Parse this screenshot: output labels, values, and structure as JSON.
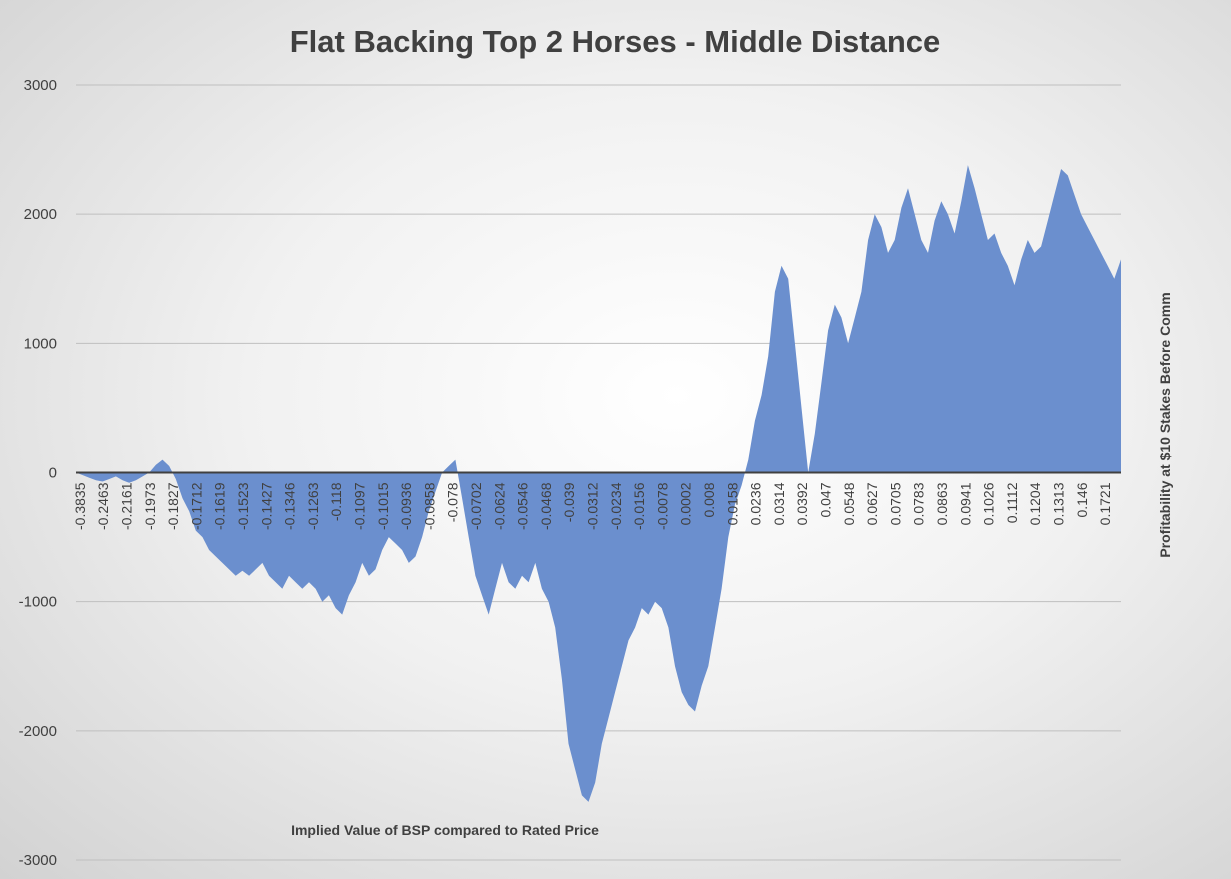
{
  "chart_data": {
    "type": "area",
    "title": "Flat Backing Top 2 Horses - Middle Distance",
    "xlabel": "Implied Value of BSP compared to Rated Price",
    "ylabel": "Profitability at $10 Stakes Before Comm",
    "ylim": [
      -3000,
      3000
    ],
    "yticks": [
      "3000",
      "2000",
      "1000",
      "0",
      "-1000",
      "-2000",
      "-3000"
    ],
    "grid": true,
    "color": "#6b8fce",
    "xtick_labels": [
      "-0.3835",
      "-0.2463",
      "-0.2161",
      "-0.1973",
      "-0.1827",
      "-0.1712",
      "-0.1619",
      "-0.1523",
      "-0.1427",
      "-0.1346",
      "-0.1263",
      "-0.118",
      "-0.1097",
      "-0.1015",
      "-0.0936",
      "-0.0858",
      "-0.078",
      "-0.0702",
      "-0.0624",
      "-0.0546",
      "-0.0468",
      "-0.039",
      "-0.0312",
      "-0.0234",
      "-0.0156",
      "-0.0078",
      "0.0002",
      "0.008",
      "0.0158",
      "0.0236",
      "0.0314",
      "0.0392",
      "0.047",
      "0.0548",
      "0.0627",
      "0.0705",
      "0.0783",
      "0.0863",
      "0.0941",
      "0.1026",
      "0.1112",
      "0.1204",
      "0.1313",
      "0.146",
      "0.1721"
    ],
    "series": [
      {
        "values": [
          0,
          -20,
          -40,
          -60,
          -70,
          -50,
          -30,
          -60,
          -80,
          -60,
          -30,
          0,
          60,
          100,
          50,
          -50,
          -200,
          -300,
          -450,
          -500,
          -600,
          -650,
          -700,
          -750,
          -800,
          -760,
          -800,
          -750,
          -700,
          -800,
          -850,
          -900,
          -800,
          -850,
          -900,
          -850,
          -900,
          -1000,
          -950,
          -1050,
          -1100,
          -950,
          -850,
          -700,
          -800,
          -750,
          -600,
          -500,
          -550,
          -600,
          -700,
          -650,
          -500,
          -300,
          -150,
          0,
          50,
          100,
          -200,
          -500,
          -800,
          -950,
          -1100,
          -900,
          -700,
          -850,
          -900,
          -800,
          -850,
          -700,
          -900,
          -1000,
          -1200,
          -1600,
          -2100,
          -2300,
          -2500,
          -2550,
          -2400,
          -2100,
          -1900,
          -1700,
          -1500,
          -1300,
          -1200,
          -1050,
          -1100,
          -1000,
          -1050,
          -1200,
          -1500,
          -1700,
          -1800,
          -1850,
          -1650,
          -1500,
          -1200,
          -900,
          -500,
          -250,
          -100,
          100,
          400,
          600,
          900,
          1400,
          1600,
          1500,
          1000,
          500,
          0,
          300,
          700,
          1100,
          1300,
          1200,
          1000,
          1200,
          1400,
          1800,
          2000,
          1900,
          1700,
          1800,
          2050,
          2200,
          2000,
          1800,
          1700,
          1950,
          2100,
          2000,
          1850,
          2100,
          2380,
          2200,
          2000,
          1800,
          1850,
          1700,
          1600,
          1450,
          1650,
          1800,
          1700,
          1750,
          1950,
          2150,
          2350,
          2300,
          2150,
          2000,
          1900,
          1800,
          1700,
          1600,
          1500,
          1650
        ]
      }
    ]
  }
}
